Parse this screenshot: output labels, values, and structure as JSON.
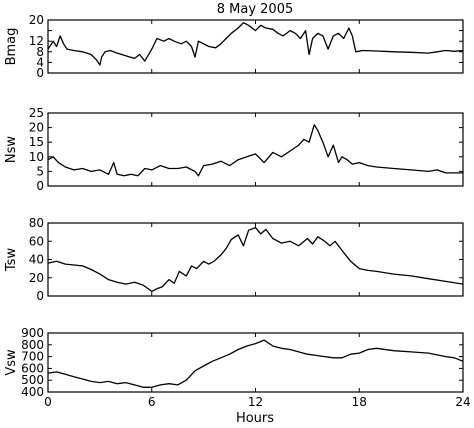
{
  "figure_title": "8 May 2005",
  "chart_data": [
    {
      "type": "line",
      "ylabel": "Bmag",
      "xlim": [
        0,
        24
      ],
      "ylim": [
        0,
        20
      ],
      "yticks": [
        0,
        4,
        8,
        12,
        16,
        20
      ],
      "ytick_labels": [
        "0",
        "4",
        "8",
        "12",
        "",
        "20"
      ],
      "xticks": [
        0,
        6,
        12,
        18,
        24
      ],
      "series": [
        {
          "x": [
            0,
            0.3,
            0.5,
            0.7,
            0.9,
            1.1,
            1.5,
            2.0,
            2.5,
            2.8,
            3.0,
            3.1,
            3.3,
            3.6,
            4.0,
            4.5,
            5.0,
            5.3,
            5.6,
            6.0,
            6.3,
            6.7,
            7.0,
            7.3,
            7.7,
            8.0,
            8.3,
            8.5,
            8.7,
            9.0,
            9.3,
            9.7,
            10.0,
            10.3,
            10.6,
            11.0,
            11.3,
            11.6,
            12.0,
            12.3,
            12.6,
            13.0,
            13.3,
            13.6,
            14.0,
            14.3,
            14.6,
            14.9,
            15.1,
            15.3,
            15.6,
            15.9,
            16.2,
            16.5,
            16.8,
            17.1,
            17.4,
            17.6,
            17.8,
            18.2,
            19.0,
            20.0,
            21.0,
            22.0,
            22.5,
            23.0,
            23.5,
            24.0
          ],
          "y": [
            9,
            12,
            10,
            14,
            11,
            9,
            8.5,
            8,
            7,
            5,
            3,
            6,
            8,
            8.5,
            7.5,
            6.5,
            5.5,
            7,
            4.5,
            9,
            13,
            12,
            13,
            12,
            11,
            12,
            10,
            6,
            12,
            11,
            10,
            9.5,
            11,
            13,
            15,
            17,
            19,
            18,
            16,
            18,
            17,
            16.5,
            15,
            14,
            16,
            15,
            13,
            16,
            7,
            13,
            15,
            14,
            9,
            14,
            15,
            13,
            17,
            14,
            8,
            8.5,
            8.3,
            8,
            7.8,
            7.5,
            8,
            8.5,
            8.2,
            8.5
          ]
        }
      ]
    },
    {
      "type": "line",
      "ylabel": "Nsw",
      "xlim": [
        0,
        24
      ],
      "ylim": [
        0,
        25
      ],
      "yticks": [
        0,
        5,
        10,
        15,
        20,
        25
      ],
      "ytick_labels": [
        "0",
        "5",
        "10",
        "15",
        "20",
        "25"
      ],
      "xticks": [
        0,
        6,
        12,
        18,
        24
      ],
      "series": [
        {
          "x": [
            0,
            0.3,
            0.6,
            1.0,
            1.5,
            2.0,
            2.5,
            3.0,
            3.5,
            3.8,
            4.0,
            4.4,
            4.8,
            5.2,
            5.6,
            6.0,
            6.5,
            7.0,
            7.5,
            8.0,
            8.5,
            8.7,
            9.0,
            9.5,
            10.0,
            10.5,
            11.0,
            11.5,
            12.0,
            12.5,
            13.0,
            13.5,
            14.0,
            14.5,
            14.8,
            15.1,
            15.4,
            15.6,
            15.9,
            16.2,
            16.5,
            16.8,
            17.0,
            17.3,
            17.6,
            18.0,
            18.5,
            19.0,
            20.0,
            21.0,
            22.0,
            22.5,
            23.0,
            24.0
          ],
          "y": [
            9,
            10,
            8,
            6.5,
            5.5,
            6,
            5,
            5.5,
            4,
            8,
            4,
            3.5,
            4,
            3.5,
            6,
            5.5,
            7,
            6,
            6,
            6.5,
            5,
            3.5,
            7,
            7.5,
            8.5,
            7,
            9,
            10,
            11,
            8,
            11.5,
            10,
            12,
            14,
            16,
            15,
            21,
            19,
            15,
            10,
            14,
            8,
            10,
            9,
            7.5,
            8,
            7,
            6.5,
            6,
            5.5,
            5,
            5.5,
            4.5,
            4.5
          ]
        }
      ]
    },
    {
      "type": "line",
      "ylabel": "Tsw",
      "xlim": [
        0,
        24
      ],
      "ylim": [
        0,
        80
      ],
      "yticks": [
        0,
        20,
        40,
        60,
        80
      ],
      "ytick_labels": [
        "0",
        "20",
        "40",
        "60",
        "80"
      ],
      "xticks": [
        0,
        6,
        12,
        18,
        24
      ],
      "series": [
        {
          "x": [
            0,
            0.5,
            1.0,
            1.5,
            2.0,
            2.5,
            3.0,
            3.5,
            4.0,
            4.5,
            5.0,
            5.5,
            6.0,
            6.3,
            6.6,
            7.0,
            7.3,
            7.6,
            8.0,
            8.3,
            8.6,
            9.0,
            9.3,
            9.6,
            10.0,
            10.3,
            10.6,
            11.0,
            11.3,
            11.6,
            12.0,
            12.3,
            12.6,
            13.0,
            13.5,
            14.0,
            14.5,
            15.0,
            15.3,
            15.6,
            16.0,
            16.3,
            16.6,
            17.0,
            17.5,
            18.0,
            18.5,
            19.0,
            20.0,
            21.0,
            22.0,
            23.0,
            24.0
          ],
          "y": [
            36,
            38,
            35,
            34,
            33,
            29,
            24,
            18,
            15,
            13,
            15,
            12,
            5,
            8,
            10,
            18,
            14,
            27,
            22,
            33,
            30,
            38,
            35,
            38,
            45,
            52,
            62,
            67,
            55,
            72,
            75,
            68,
            73,
            63,
            58,
            60,
            55,
            63,
            57,
            65,
            60,
            55,
            60,
            50,
            38,
            30,
            28,
            27,
            24,
            22,
            19,
            16,
            13
          ]
        }
      ]
    },
    {
      "type": "line",
      "ylabel": "Vsw",
      "xlim": [
        0,
        24
      ],
      "ylim": [
        400,
        900
      ],
      "yticks": [
        400,
        500,
        600,
        700,
        800,
        900
      ],
      "ytick_labels": [
        "400",
        "500",
        "600",
        "700",
        "800",
        "900"
      ],
      "xticks": [
        0,
        6,
        12,
        18,
        24
      ],
      "xtick_labels": [
        "0",
        "6",
        "12",
        "18",
        "24"
      ],
      "xlabel": "Hours",
      "series": [
        {
          "x": [
            0,
            0.5,
            1.0,
            1.5,
            2.0,
            2.5,
            3.0,
            3.5,
            4.0,
            4.5,
            5.0,
            5.5,
            6.0,
            6.5,
            7.0,
            7.5,
            8.0,
            8.5,
            9.0,
            9.5,
            10.0,
            10.5,
            11.0,
            11.5,
            12.0,
            12.5,
            13.0,
            13.5,
            14.0,
            14.5,
            15.0,
            15.5,
            16.0,
            16.5,
            17.0,
            17.5,
            18.0,
            18.5,
            19.0,
            20.0,
            21.0,
            22.0,
            23.0,
            23.5,
            24.0
          ],
          "y": [
            560,
            570,
            550,
            530,
            510,
            490,
            480,
            490,
            470,
            480,
            460,
            440,
            440,
            460,
            470,
            460,
            500,
            580,
            620,
            660,
            690,
            720,
            760,
            790,
            810,
            840,
            790,
            770,
            760,
            740,
            720,
            710,
            700,
            690,
            690,
            720,
            730,
            760,
            770,
            750,
            740,
            730,
            700,
            690,
            660
          ]
        }
      ]
    }
  ]
}
